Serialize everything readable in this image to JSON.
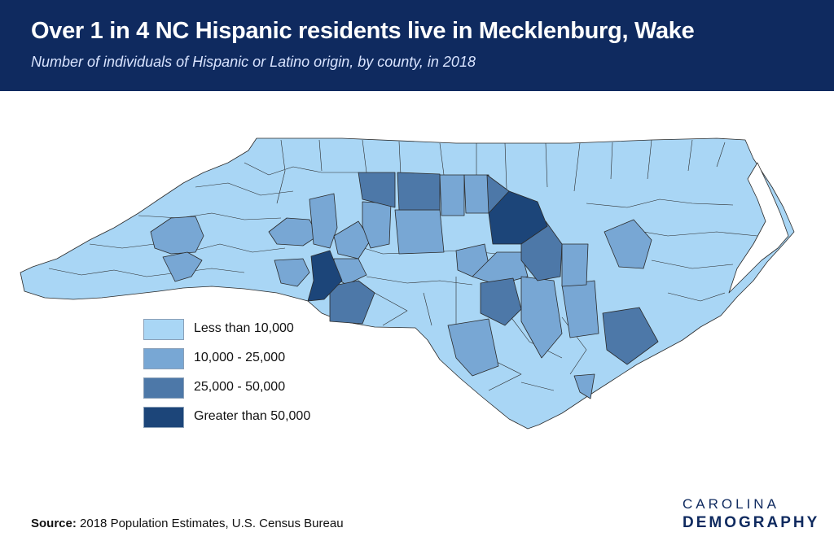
{
  "header": {
    "title": "Over 1 in 4 NC Hispanic residents live in Mecklenburg, Wake",
    "subtitle": "Number of individuals of Hispanic or Latino origin, by county, in 2018"
  },
  "legend": {
    "items": [
      {
        "label": "Less than 10,000",
        "color": "#a9d6f5"
      },
      {
        "label": "10,000 - 25,000",
        "color": "#78a7d4"
      },
      {
        "label": "25,000 - 50,000",
        "color": "#4d78a8"
      },
      {
        "label": "Greater than 50,000",
        "color": "#1c4579"
      }
    ]
  },
  "map": {
    "region": "North Carolina",
    "border_color": "#2a2a2a",
    "water_color": "#ffffff"
  },
  "source": {
    "label": "Source:",
    "text": " 2018 Population Estimates, U.S. Census Bureau"
  },
  "logo": {
    "line1": "CAROLINA",
    "line2": "DEMOGRAPHY"
  }
}
